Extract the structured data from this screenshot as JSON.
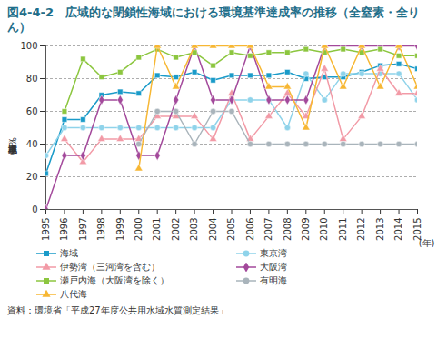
{
  "chart_data": {
    "type": "line",
    "title": "図4-4-2　広域的な閉鎖性海域における環境基準達成率の推移（全窒素・全りん）",
    "y_label": "環境基準達成率（%）",
    "x_label": "(年)",
    "source": "資料：環境省「平成27年度公共用水域水質測定結果」",
    "x": [
      1995,
      1996,
      1997,
      1998,
      1999,
      2000,
      2001,
      2002,
      2003,
      2004,
      2005,
      2006,
      2007,
      2008,
      2009,
      2010,
      2011,
      2012,
      2013,
      2014,
      2015
    ],
    "xlim": [
      1995,
      2015
    ],
    "xticks": [
      1995,
      1996,
      1997,
      1998,
      1999,
      2000,
      2001,
      2002,
      2003,
      2004,
      2005,
      2006,
      2007,
      2008,
      2009,
      2010,
      2011,
      2012,
      2013,
      2014,
      2015
    ],
    "ylim": [
      0,
      100
    ],
    "yticks": [
      0,
      20,
      40,
      60,
      80,
      100
    ],
    "grid": true,
    "series": [
      {
        "name": "海域",
        "color": "#1a9bc9",
        "marker": "square",
        "values": [
          22,
          55,
          55,
          70,
          72,
          71,
          82,
          81,
          84,
          79,
          82,
          82,
          82,
          84,
          80,
          81,
          81,
          84,
          88,
          89,
          86
        ]
      },
      {
        "name": "東京湾",
        "color": "#8fd3ea",
        "marker": "circle",
        "values": [
          33,
          50,
          50,
          50,
          50,
          50,
          50,
          50,
          50,
          50,
          67,
          67,
          67,
          50,
          83,
          67,
          83,
          83,
          83,
          83,
          67
        ]
      },
      {
        "name": "伊勢湾（三河湾を含む）",
        "color": "#f29aa6",
        "marker": "triangle",
        "values": [
          null,
          43,
          29,
          43,
          43,
          43,
          57,
          57,
          57,
          43,
          71,
          43,
          57,
          71,
          57,
          86,
          43,
          57,
          86,
          71,
          71
        ]
      },
      {
        "name": "大阪湾",
        "color": "#a3499b",
        "marker": "diamond",
        "values": [
          0,
          33,
          33,
          67,
          67,
          33,
          33,
          67,
          100,
          67,
          67,
          100,
          67,
          67,
          67,
          100,
          100,
          100,
          100,
          100,
          100
        ]
      },
      {
        "name": "瀬戸内海（大阪湾を除く）",
        "color": "#8cc63f",
        "marker": "square",
        "values": [
          null,
          60,
          92,
          81,
          84,
          93,
          98,
          93,
          96,
          88,
          96,
          94,
          96,
          96,
          98,
          96,
          98,
          96,
          98,
          94,
          94
        ]
      },
      {
        "name": "有明海",
        "color": "#a9b4bb",
        "marker": "circle",
        "values": [
          null,
          null,
          null,
          null,
          null,
          40,
          60,
          60,
          40,
          60,
          60,
          40,
          40,
          40,
          40,
          40,
          40,
          40,
          40,
          40,
          40
        ]
      },
      {
        "name": "八代海",
        "color": "#f7b733",
        "marker": "triangle",
        "values": [
          null,
          null,
          null,
          null,
          null,
          25,
          100,
          75,
          100,
          100,
          100,
          100,
          75,
          75,
          50,
          100,
          75,
          100,
          75,
          100,
          75
        ]
      }
    ]
  }
}
